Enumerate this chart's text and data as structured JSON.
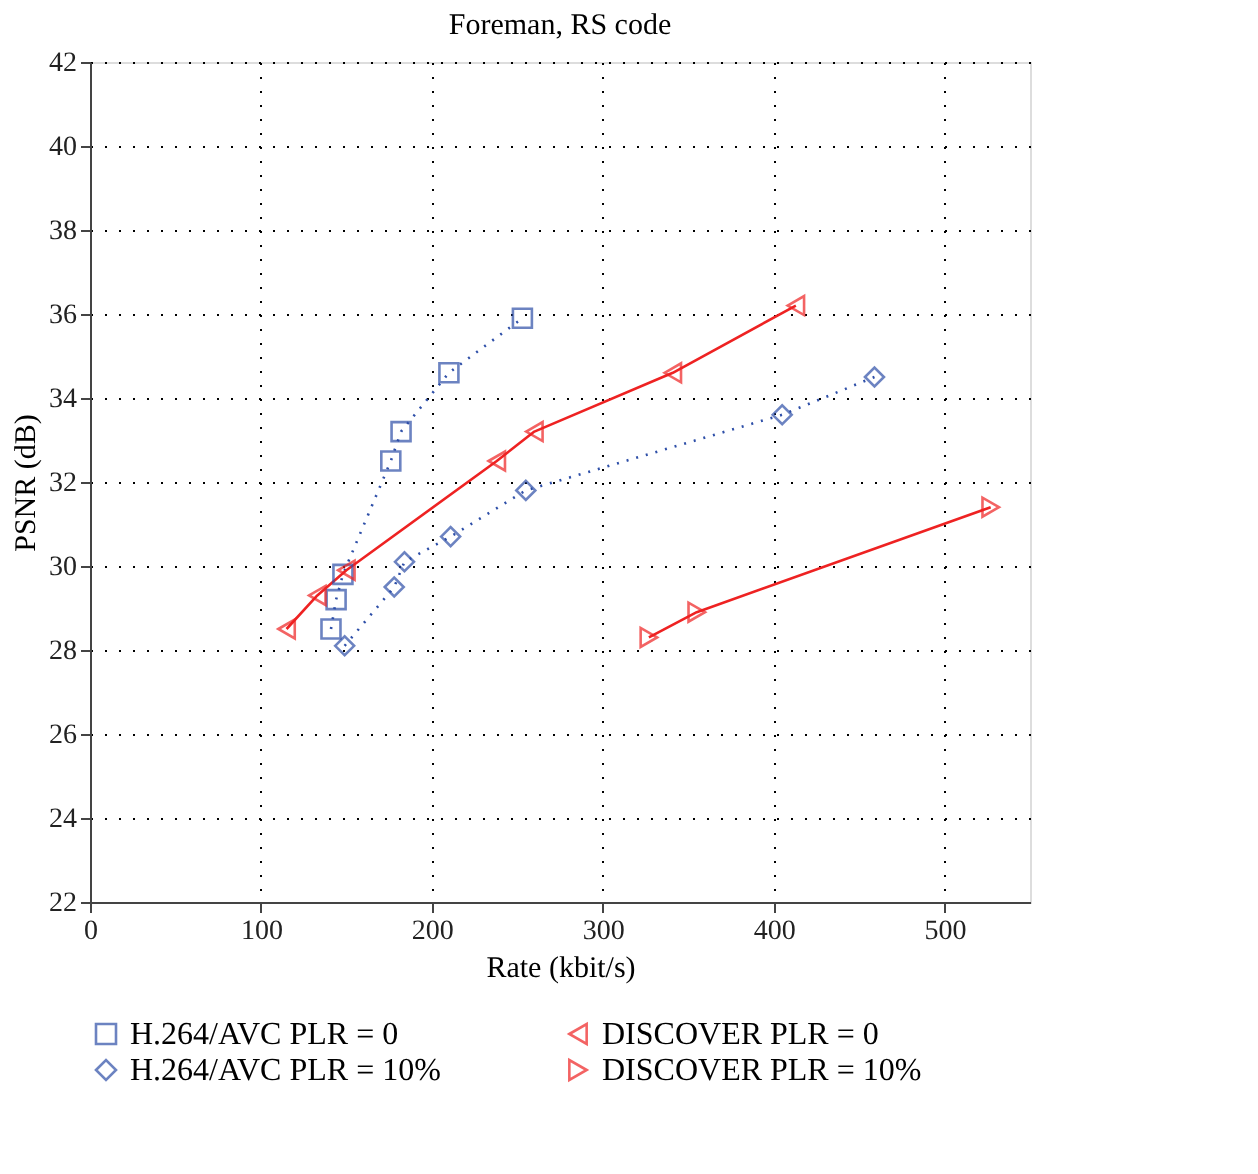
{
  "chart_data": {
    "type": "line",
    "title": "Foreman, RS code",
    "xlabel": "Rate (kbit/s)",
    "ylabel": "PSNR (dB)",
    "xlim": [
      0,
      550
    ],
    "xticks": [
      0,
      100,
      200,
      300,
      400,
      500
    ],
    "ylim": [
      22,
      42
    ],
    "yticks": [
      22,
      24,
      26,
      28,
      30,
      32,
      34,
      36,
      38,
      40,
      42
    ],
    "grid": true,
    "legend": "bottom",
    "series": [
      {
        "name": "H.264/AVC PLR = 0",
        "color": "#2e4fa8",
        "marker": "square",
        "line_style": "dotted",
        "x": [
          141,
          144,
          148,
          176,
          182,
          210,
          253
        ],
        "values": [
          28.5,
          29.2,
          29.8,
          32.5,
          33.2,
          34.6,
          35.9
        ]
      },
      {
        "name": "H.264/AVC PLR = 10%",
        "color": "#2e4fa8",
        "marker": "diamond",
        "line_style": "dotted",
        "x": [
          149,
          178,
          184,
          211,
          255,
          405,
          459
        ],
        "values": [
          28.1,
          29.5,
          30.1,
          30.7,
          31.8,
          33.6,
          34.5
        ]
      },
      {
        "name": "DISCOVER PLR = 0",
        "color": "#ee2222",
        "marker": "triangle-left",
        "line_style": "solid",
        "x": [
          115,
          133,
          150,
          238,
          260,
          341,
          413
        ],
        "values": [
          28.5,
          29.3,
          29.9,
          32.5,
          33.2,
          34.6,
          36.2
        ]
      },
      {
        "name": "DISCOVER PLR = 10%",
        "color": "#ee2222",
        "marker": "triangle-right",
        "line_style": "solid",
        "x": [
          327,
          355,
          527
        ],
        "values": [
          28.3,
          28.9,
          31.4
        ]
      }
    ]
  }
}
